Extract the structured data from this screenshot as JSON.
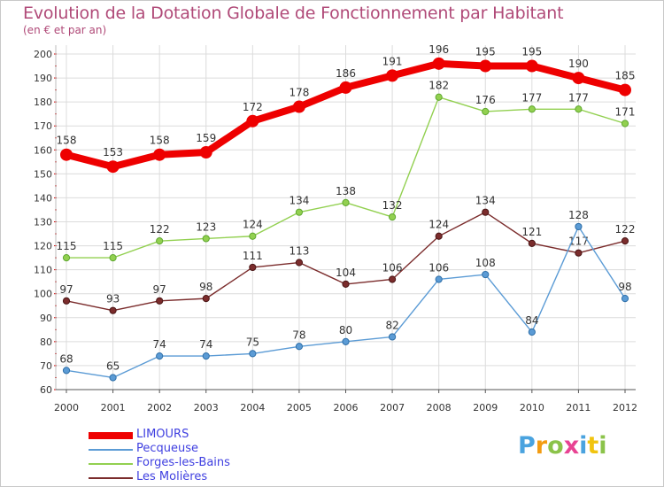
{
  "title": "Evolution de la Dotation Globale de Fonctionnement par Habitant",
  "subtitle": "(en € et par an)",
  "logo": {
    "letters": [
      "P",
      "r",
      "o",
      "x",
      "i",
      "t",
      "i"
    ],
    "colors": [
      "#4aa3df",
      "#f39c12",
      "#8bc34a",
      "#e84393",
      "#4aa3df",
      "#f1c40f",
      "#8bc34a"
    ]
  },
  "chart_data": {
    "type": "line",
    "x": [
      "2000",
      "2001",
      "2002",
      "2003",
      "2004",
      "2005",
      "2006",
      "2007",
      "2008",
      "2009",
      "2010",
      "2011",
      "2012"
    ],
    "ylim": [
      60,
      200
    ],
    "yticks": [
      60,
      70,
      80,
      90,
      100,
      110,
      120,
      130,
      140,
      150,
      160,
      170,
      180,
      190,
      200
    ],
    "grid": true,
    "legend_position": "bottom-left",
    "series": [
      {
        "name": "LIMOURS",
        "values": [
          158,
          153,
          158,
          159,
          172,
          178,
          186,
          191,
          196,
          195,
          195,
          190,
          185
        ],
        "color": "#ee0000",
        "stroke": "#ee0000",
        "emphasis": true
      },
      {
        "name": "Pecqueuse",
        "values": [
          68,
          65,
          74,
          74,
          75,
          78,
          80,
          82,
          106,
          108,
          84,
          128,
          98
        ],
        "color": "#5b9bd5",
        "stroke": "#2f6fa8",
        "emphasis": false
      },
      {
        "name": "Forges-les-Bains",
        "values": [
          115,
          115,
          122,
          123,
          124,
          134,
          138,
          132,
          182,
          176,
          177,
          177,
          171
        ],
        "color": "#92d050",
        "stroke": "#5fa830",
        "emphasis": false
      },
      {
        "name": "Les Molières",
        "values": [
          97,
          93,
          97,
          98,
          111,
          113,
          104,
          106,
          124,
          134,
          121,
          117,
          122
        ],
        "color": "#7b2c2c",
        "stroke": "#4a1515",
        "emphasis": false
      }
    ]
  }
}
